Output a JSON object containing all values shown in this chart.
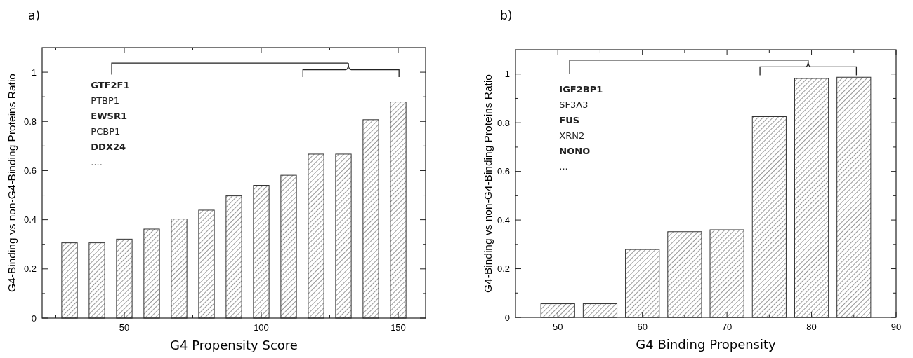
{
  "chart_data": [
    {
      "type": "bar",
      "title": "a)",
      "xlabel": "G4 Propensity Score",
      "ylabel": "G4-Binding vs non-G4-Binding Proteins Ratio",
      "x": [
        30,
        40,
        50,
        60,
        70,
        80,
        90,
        100,
        110,
        120,
        130,
        140,
        150
      ],
      "values": [
        0.306,
        0.306,
        0.321,
        0.362,
        0.403,
        0.439,
        0.497,
        0.54,
        0.581,
        0.667,
        0.667,
        0.807,
        0.879
      ],
      "color": "#333333",
      "xlim": [
        20,
        160
      ],
      "xticks": [
        {
          "value": 25,
          "label": null
        },
        50,
        {
          "value": 75,
          "label": null
        },
        100,
        {
          "value": 125,
          "label": null
        },
        150
      ],
      "ylim": [
        0,
        1.1
      ],
      "yticks": [
        0,
        {
          "value": 0.1,
          "label": null
        },
        0.2,
        {
          "value": 0.3,
          "label": null
        },
        0.4,
        {
          "value": 0.5,
          "label": null
        },
        0.6,
        {
          "value": 0.7,
          "label": null
        },
        0.8,
        {
          "value": 0.9,
          "label": null
        },
        1
      ],
      "annotations": [
        "GTF2F1",
        "PTBP1",
        "EWSR1",
        "PCBP1",
        "DDX24",
        "...."
      ],
      "grid": false
    },
    {
      "type": "bar",
      "title": "b)",
      "xlabel": "G4 Binding Propensity",
      "ylabel": "G4-Binding vs non-G4-Binding Proteins Ratio",
      "x": [
        50,
        55,
        60,
        65,
        70,
        75,
        80,
        85
      ],
      "values": [
        0.056,
        0.056,
        0.279,
        0.352,
        0.36,
        0.825,
        0.982,
        0.987
      ],
      "color": "#333333",
      "xlim": [
        45,
        90
      ],
      "xticks": [
        50,
        {
          "value": 55,
          "label": null
        },
        60,
        {
          "value": 65,
          "label": null
        },
        70,
        {
          "value": 75,
          "label": null
        },
        80,
        {
          "value": 85,
          "label": null
        },
        90
      ],
      "ylim": [
        0,
        1.1
      ],
      "yticks": [
        0,
        {
          "value": 0.1,
          "label": null
        },
        0.2,
        {
          "value": 0.3,
          "label": null
        },
        0.4,
        {
          "value": 0.5,
          "label": null
        },
        0.6,
        {
          "value": 0.7,
          "label": null
        },
        0.8,
        {
          "value": 0.9,
          "label": null
        },
        1
      ],
      "annotations": [
        "IGF2BP1",
        "SF3A3",
        "FUS",
        "XRN2",
        "NONO",
        "..."
      ],
      "grid": false
    }
  ]
}
